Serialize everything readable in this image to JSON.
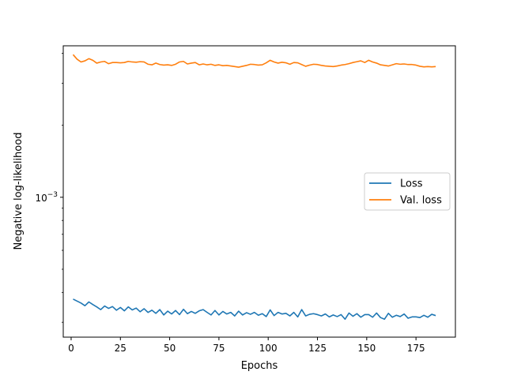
{
  "chart_data": {
    "type": "line",
    "title": "",
    "xlabel": "Epochs",
    "ylabel": "Negative log-likelihood",
    "yscale": "log",
    "xlim": [
      -4,
      195
    ],
    "ylim": [
      0.00026,
      0.0043
    ],
    "x_ticks": [
      0,
      25,
      50,
      75,
      100,
      125,
      150,
      175
    ],
    "x_tick_labels": [
      "0",
      "25",
      "50",
      "75",
      "100",
      "125",
      "150",
      "175"
    ],
    "y_ticks": [
      0.001
    ],
    "y_tick_labels": {
      "base": "10",
      "exponent": "−3"
    },
    "grid": false,
    "legend": {
      "placement": "center-right"
    },
    "series": [
      {
        "name": "Loss",
        "color": "#1f77b4",
        "x": [
          1,
          3,
          5,
          7,
          9,
          11,
          13,
          15,
          17,
          19,
          21,
          23,
          25,
          27,
          29,
          31,
          33,
          35,
          37,
          39,
          41,
          43,
          45,
          47,
          49,
          51,
          53,
          55,
          57,
          59,
          61,
          63,
          65,
          67,
          69,
          71,
          73,
          75,
          77,
          79,
          81,
          83,
          85,
          87,
          89,
          91,
          93,
          95,
          97,
          99,
          101,
          103,
          105,
          107,
          109,
          111,
          113,
          115,
          117,
          119,
          121,
          123,
          125,
          127,
          129,
          131,
          133,
          135,
          137,
          139,
          141,
          143,
          145,
          147,
          149,
          151,
          153,
          155,
          157,
          159,
          161,
          163,
          165,
          167,
          169,
          171,
          173,
          175,
          177,
          179,
          181,
          183,
          185
        ],
        "values": [
          0.000375,
          0.000368,
          0.000361,
          0.000352,
          0.000365,
          0.000356,
          0.000348,
          0.000339,
          0.000351,
          0.000343,
          0.000349,
          0.000337,
          0.000346,
          0.000335,
          0.000348,
          0.000338,
          0.000344,
          0.000332,
          0.000342,
          0.00033,
          0.000337,
          0.000327,
          0.000339,
          0.000322,
          0.000334,
          0.000325,
          0.000336,
          0.000323,
          0.00034,
          0.000326,
          0.000333,
          0.000327,
          0.000335,
          0.000339,
          0.00033,
          0.000322,
          0.000336,
          0.000322,
          0.000333,
          0.000325,
          0.00033,
          0.000319,
          0.000334,
          0.000322,
          0.000329,
          0.000324,
          0.00033,
          0.000321,
          0.000326,
          0.000317,
          0.000338,
          0.00032,
          0.00033,
          0.000325,
          0.000327,
          0.000319,
          0.00033,
          0.000316,
          0.000339,
          0.000319,
          0.000324,
          0.000326,
          0.000323,
          0.000319,
          0.000325,
          0.000316,
          0.000322,
          0.000317,
          0.000323,
          0.000309,
          0.000328,
          0.000318,
          0.000326,
          0.000315,
          0.000323,
          0.000323,
          0.000315,
          0.000328,
          0.000314,
          0.000309,
          0.000327,
          0.000315,
          0.000321,
          0.000317,
          0.000325,
          0.000312,
          0.000316,
          0.000316,
          0.000314,
          0.000321,
          0.000315,
          0.000324,
          0.00032
        ]
      },
      {
        "name": "Val. loss",
        "color": "#ff7f0e",
        "x": [
          1,
          3,
          5,
          7,
          9,
          11,
          13,
          15,
          17,
          19,
          21,
          23,
          25,
          27,
          29,
          31,
          33,
          35,
          37,
          39,
          41,
          43,
          45,
          47,
          49,
          51,
          53,
          55,
          57,
          59,
          61,
          63,
          65,
          67,
          69,
          71,
          73,
          75,
          77,
          79,
          81,
          83,
          85,
          87,
          89,
          91,
          93,
          95,
          97,
          99,
          101,
          103,
          105,
          107,
          109,
          111,
          113,
          115,
          117,
          119,
          121,
          123,
          125,
          127,
          129,
          131,
          133,
          135,
          137,
          139,
          141,
          143,
          145,
          147,
          149,
          151,
          153,
          155,
          157,
          159,
          161,
          163,
          165,
          167,
          169,
          171,
          173,
          175,
          177,
          179,
          181,
          183,
          185
        ],
        "values": [
          0.00395,
          0.00378,
          0.00368,
          0.00372,
          0.0038,
          0.00374,
          0.00364,
          0.00368,
          0.0037,
          0.00362,
          0.00366,
          0.00366,
          0.00365,
          0.00366,
          0.0037,
          0.00368,
          0.00367,
          0.00369,
          0.00368,
          0.0036,
          0.00358,
          0.00364,
          0.00359,
          0.00357,
          0.00358,
          0.00356,
          0.0036,
          0.00368,
          0.0037,
          0.00361,
          0.00364,
          0.00366,
          0.00358,
          0.00361,
          0.00358,
          0.0036,
          0.00356,
          0.00358,
          0.00355,
          0.00356,
          0.00354,
          0.00352,
          0.0035,
          0.00353,
          0.00356,
          0.0036,
          0.00359,
          0.00357,
          0.00358,
          0.00365,
          0.00374,
          0.00368,
          0.00364,
          0.00367,
          0.00365,
          0.0036,
          0.00366,
          0.00365,
          0.00359,
          0.00353,
          0.00357,
          0.0036,
          0.00359,
          0.00356,
          0.00354,
          0.00353,
          0.00352,
          0.00354,
          0.00357,
          0.00359,
          0.00362,
          0.00366,
          0.00369,
          0.00372,
          0.00366,
          0.00374,
          0.00368,
          0.00364,
          0.00358,
          0.00356,
          0.00354,
          0.00358,
          0.00362,
          0.0036,
          0.00361,
          0.00359,
          0.00359,
          0.00357,
          0.00353,
          0.00351,
          0.00352,
          0.00351,
          0.00352
        ]
      }
    ]
  }
}
